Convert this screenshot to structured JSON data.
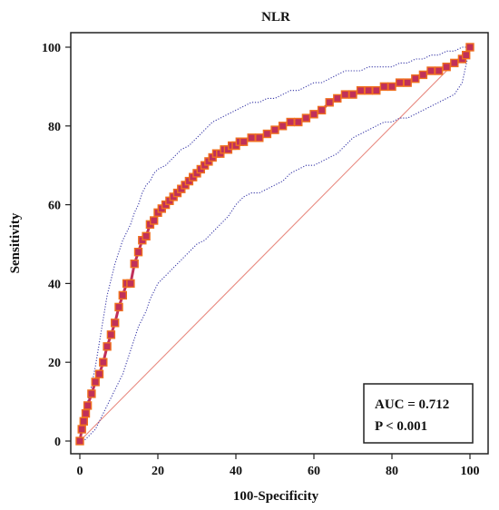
{
  "chart_data": {
    "type": "line",
    "title": "NLR",
    "xlabel": "100-Specificity",
    "ylabel": "Sensitivity",
    "xlim": [
      0,
      100
    ],
    "ylim": [
      0,
      100
    ],
    "xticks": [
      0,
      20,
      40,
      60,
      80,
      100
    ],
    "yticks": [
      0,
      20,
      40,
      60,
      80,
      100
    ],
    "grid": false,
    "annotations": [
      "AUC = 0.712",
      "P < 0.001"
    ],
    "series": [
      {
        "role": "roc-curve",
        "style": "markers",
        "color": "#c0305a",
        "marker_border_color": "#f07020",
        "x": [
          0,
          0.5,
          1,
          1.5,
          2,
          3,
          4,
          5,
          6,
          7,
          8,
          9,
          10,
          11,
          12,
          13,
          14,
          15,
          16,
          17,
          18,
          19,
          20,
          21,
          22,
          23,
          24,
          25,
          26,
          27,
          28,
          29,
          30,
          31,
          32,
          33,
          34,
          35,
          36,
          37,
          38,
          39,
          40,
          41,
          42,
          44,
          46,
          48,
          50,
          52,
          54,
          56,
          58,
          60,
          62,
          64,
          66,
          68,
          70,
          72,
          74,
          76,
          78,
          80,
          82,
          84,
          86,
          88,
          90,
          92,
          94,
          96,
          98,
          99,
          100
        ],
        "y": [
          0,
          3,
          5,
          7,
          9,
          12,
          15,
          17,
          20,
          24,
          27,
          30,
          34,
          37,
          40,
          40,
          45,
          48,
          51,
          52,
          55,
          56,
          58,
          59,
          60,
          61,
          62,
          63,
          64,
          65,
          66,
          67,
          68,
          69,
          70,
          71,
          72,
          73,
          73,
          74,
          74,
          75,
          75,
          76,
          76,
          77,
          77,
          78,
          79,
          80,
          81,
          81,
          82,
          83,
          84,
          86,
          87,
          88,
          88,
          89,
          89,
          89,
          90,
          90,
          91,
          91,
          92,
          93,
          94,
          94,
          95,
          96,
          97,
          98,
          100
        ]
      },
      {
        "role": "upper-confidence-bound",
        "style": "dotted",
        "color": "#3a3aa8",
        "x": [
          0,
          1,
          2,
          3,
          4,
          5,
          6,
          7,
          8,
          9,
          10,
          11,
          12,
          13,
          14,
          15,
          16,
          17,
          18,
          19,
          20,
          22,
          24,
          26,
          28,
          30,
          32,
          34,
          36,
          38,
          40,
          42,
          44,
          46,
          48,
          50,
          52,
          54,
          56,
          58,
          60,
          62,
          64,
          66,
          68,
          70,
          72,
          74,
          76,
          78,
          80,
          82,
          84,
          86,
          88,
          90,
          92,
          94,
          96,
          98,
          100
        ],
        "y": [
          0,
          6,
          10,
          14,
          19,
          25,
          31,
          37,
          41,
          45,
          48,
          51,
          53,
          55,
          58,
          60,
          63,
          65,
          66,
          68,
          69,
          70,
          72,
          74,
          75,
          77,
          79,
          81,
          82,
          83,
          84,
          85,
          86,
          86,
          87,
          87,
          88,
          89,
          89,
          90,
          91,
          91,
          92,
          93,
          94,
          94,
          94,
          95,
          95,
          95,
          95,
          96,
          96,
          97,
          97,
          98,
          98,
          99,
          99,
          100,
          100
        ]
      },
      {
        "role": "lower-confidence-bound",
        "style": "dotted",
        "color": "#3a3aa8",
        "x": [
          0,
          1,
          2,
          3,
          4,
          5,
          6,
          7,
          8,
          9,
          10,
          11,
          12,
          13,
          14,
          15,
          16,
          17,
          18,
          19,
          20,
          22,
          24,
          26,
          28,
          30,
          32,
          34,
          36,
          38,
          40,
          42,
          44,
          46,
          48,
          50,
          52,
          54,
          56,
          58,
          60,
          62,
          64,
          66,
          68,
          70,
          72,
          74,
          76,
          78,
          80,
          82,
          84,
          86,
          88,
          90,
          92,
          94,
          96,
          98,
          100
        ],
        "y": [
          0,
          0,
          1,
          2,
          3,
          5,
          7,
          9,
          11,
          13,
          15,
          17,
          20,
          23,
          26,
          29,
          31,
          33,
          36,
          38,
          40,
          42,
          44,
          46,
          48,
          50,
          51,
          53,
          55,
          57,
          60,
          62,
          63,
          63,
          64,
          65,
          66,
          68,
          69,
          70,
          70,
          71,
          72,
          73,
          75,
          77,
          78,
          79,
          80,
          81,
          81,
          82,
          82,
          83,
          84,
          85,
          86,
          87,
          88,
          91,
          100
        ]
      },
      {
        "role": "reference-diagonal",
        "style": "solid",
        "color": "#e88a80",
        "x": [
          0,
          100
        ],
        "y": [
          0,
          100
        ]
      }
    ]
  }
}
